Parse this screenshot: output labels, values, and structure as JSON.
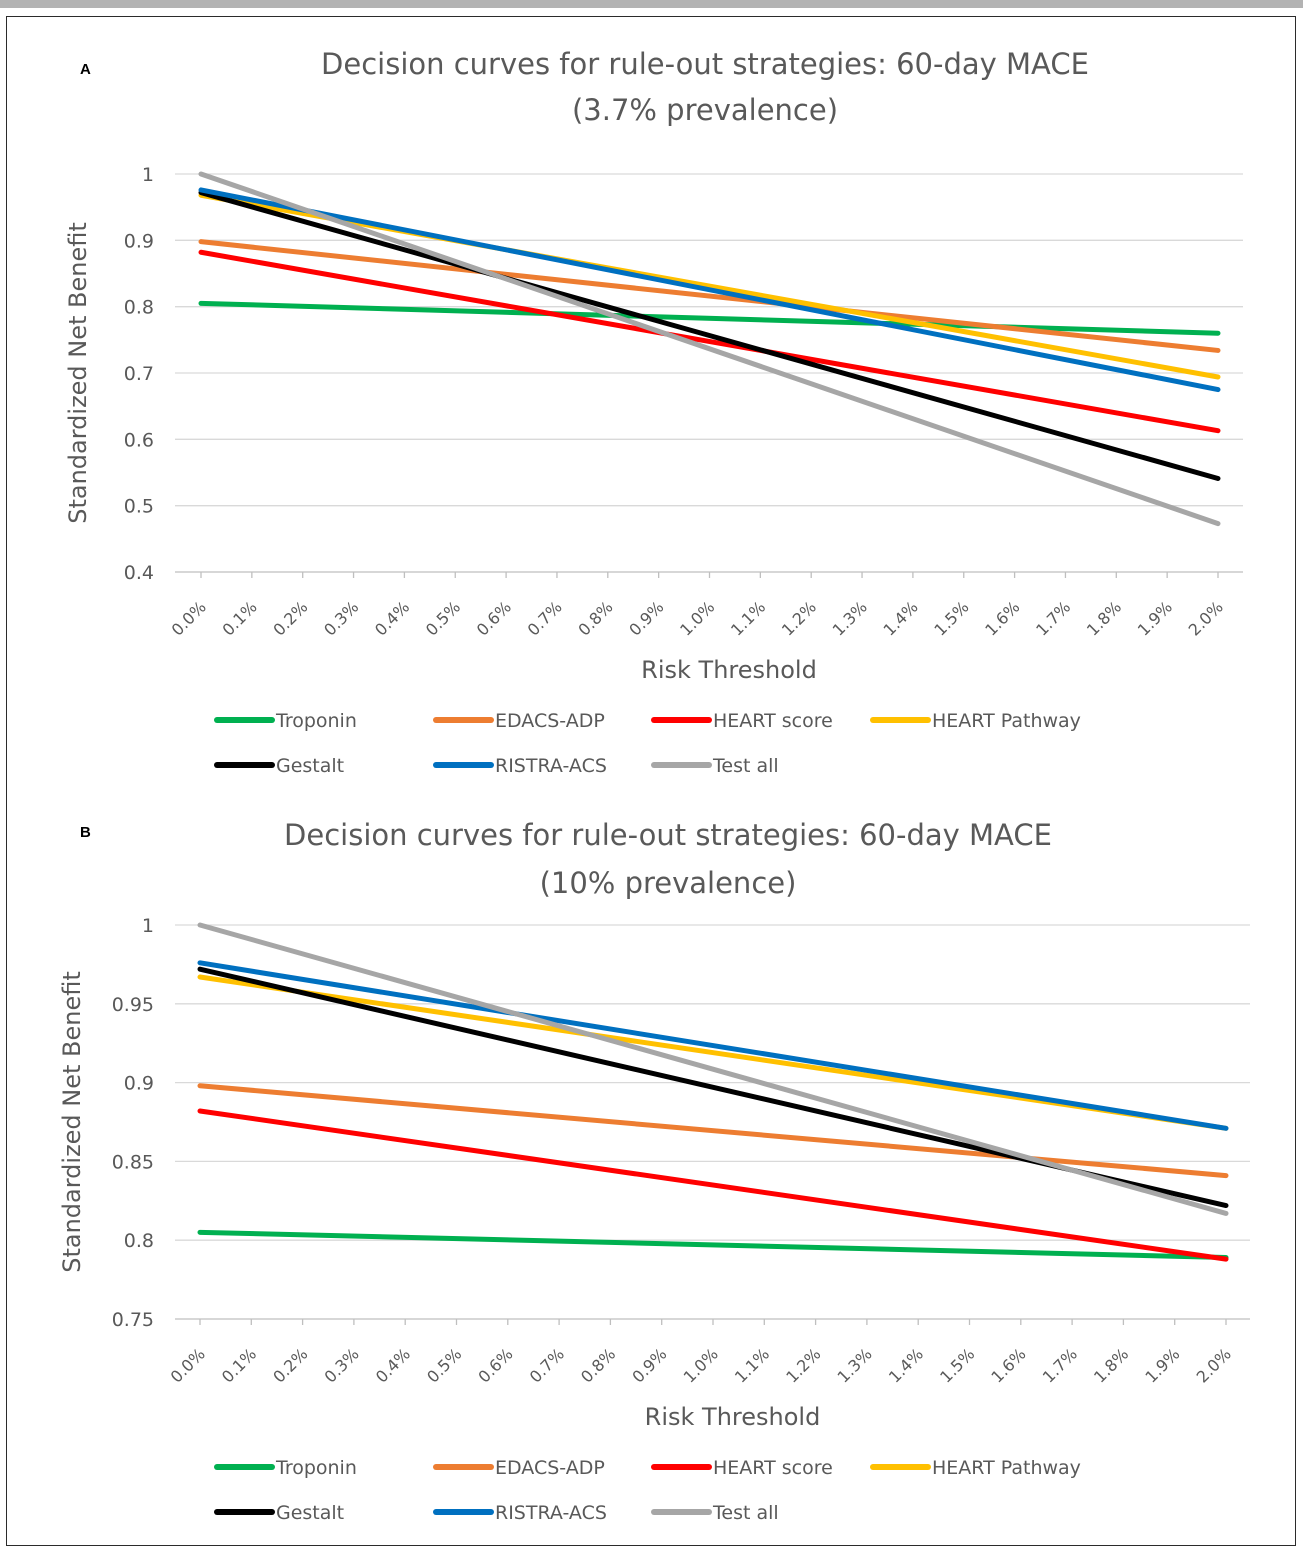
{
  "panel_labels": [
    "A",
    "B"
  ],
  "chart_data": [
    {
      "type": "line",
      "panel": "A",
      "title_lines": [
        "Decision curves for rule-out strategies: 60-day MACE",
        "(3.7% prevalence)"
      ],
      "xlabel": "Risk Threshold",
      "ylabel": "Standardized Net Benefit",
      "x": [
        "0.0%",
        "0.1%",
        "0.2%",
        "0.3%",
        "0.4%",
        "0.5%",
        "0.6%",
        "0.7%",
        "0.8%",
        "0.9%",
        "1.0%",
        "1.1%",
        "1.2%",
        "1.3%",
        "1.4%",
        "1.5%",
        "1.6%",
        "1.7%",
        "1.8%",
        "1.9%",
        "2.0%"
      ],
      "ylim": [
        0.4,
        1.0
      ],
      "yticks": [
        "0.4",
        "0.5",
        "0.6",
        "0.7",
        "0.8",
        "0.9",
        "1"
      ],
      "legend_position": "bottom",
      "grid": true,
      "series": [
        {
          "name": "Troponin",
          "color": "#00b050",
          "start": 0.805,
          "end": 0.76
        },
        {
          "name": "EDACS-ADP",
          "color": "#ed7d31",
          "start": 0.898,
          "end": 0.734
        },
        {
          "name": "HEART score",
          "color": "#ff0000",
          "start": 0.882,
          "end": 0.613
        },
        {
          "name": "HEART Pathway",
          "color": "#ffc000",
          "start": 0.968,
          "end": 0.694
        },
        {
          "name": "Gestalt",
          "color": "#000000",
          "start": 0.972,
          "end": 0.541
        },
        {
          "name": "RISTRA-ACS",
          "color": "#0070c0",
          "start": 0.976,
          "end": 0.675
        },
        {
          "name": "Test all",
          "color": "#a6a6a6",
          "start": 1.0,
          "end": 0.473
        }
      ]
    },
    {
      "type": "line",
      "panel": "B",
      "title_lines": [
        "Decision curves for rule-out strategies: 60-day MACE",
        "(10% prevalence)"
      ],
      "xlabel": "Risk Threshold",
      "ylabel": "Standardized Net Benefit",
      "x": [
        "0.0%",
        "0.1%",
        "0.2%",
        "0.3%",
        "0.4%",
        "0.5%",
        "0.6%",
        "0.7%",
        "0.8%",
        "0.9%",
        "1.0%",
        "1.1%",
        "1.2%",
        "1.3%",
        "1.4%",
        "1.5%",
        "1.6%",
        "1.7%",
        "1.8%",
        "1.9%",
        "2.0%"
      ],
      "ylim": [
        0.75,
        1.0
      ],
      "yticks": [
        "0.75",
        "0.8",
        "0.85",
        "0.9",
        "0.95",
        "1"
      ],
      "legend_position": "bottom",
      "grid": true,
      "series": [
        {
          "name": "Troponin",
          "color": "#00b050",
          "start": 0.805,
          "end": 0.789
        },
        {
          "name": "EDACS-ADP",
          "color": "#ed7d31",
          "start": 0.898,
          "end": 0.841
        },
        {
          "name": "HEART score",
          "color": "#ff0000",
          "start": 0.882,
          "end": 0.788
        },
        {
          "name": "HEART Pathway",
          "color": "#ffc000",
          "start": 0.967,
          "end": 0.871
        },
        {
          "name": "Gestalt",
          "color": "#000000",
          "start": 0.972,
          "end": 0.822
        },
        {
          "name": "RISTRA-ACS",
          "color": "#0070c0",
          "start": 0.976,
          "end": 0.871
        },
        {
          "name": "Test all",
          "color": "#a6a6a6",
          "start": 1.0,
          "end": 0.817
        }
      ]
    }
  ]
}
